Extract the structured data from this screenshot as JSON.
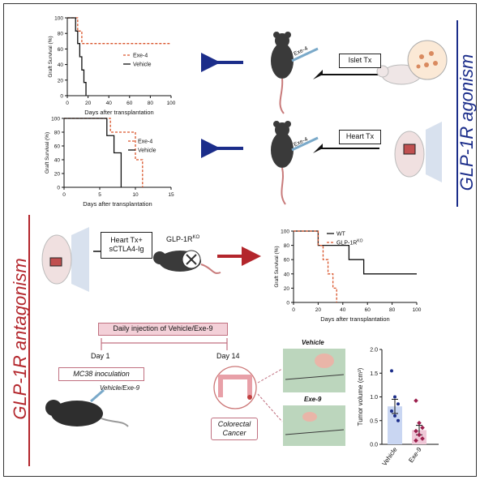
{
  "side_titles": {
    "top": "GLP-1R agonism",
    "bottom": "GLP-1R antagonism"
  },
  "colors": {
    "blue": "#1b2d8a",
    "red": "#b3262c",
    "exe4_line": "#d9542a",
    "vehicle_line": "#111111",
    "pink_bar": "#f0c8d8",
    "banner": "#f3d0d8"
  },
  "procedures": {
    "islet_tx": "Islet Tx",
    "heart_tx": "Heart Tx",
    "exe4_syringe_1": "Exe-4",
    "exe4_syringe_2": "Exe-4",
    "heart_tx_ctla4": "Heart Tx+\nsCTLA4-Ig",
    "glp1r_ko_label": "GLP-1R",
    "glp1r_ko_sup": "KO"
  },
  "experiment": {
    "banner": "Daily injection of Vehicle/Exe-9",
    "day1": "Day 1",
    "day14": "Day 14",
    "mc38": "MC38 inoculation",
    "mouse_label": "Vehicle/Exe-9",
    "colorectal": "Colorectal\nCancer",
    "photo_vehicle": "Vehicle",
    "photo_exe9": "Exe-9"
  },
  "chart_data": [
    {
      "type": "line",
      "xlabel": "Days after transplantation",
      "ylabel": "Graft Survival (%)",
      "xlim": [
        0,
        100
      ],
      "ylim": [
        0,
        100
      ],
      "xticks": [
        0,
        20,
        40,
        60,
        80,
        100
      ],
      "yticks": [
        0,
        20,
        40,
        60,
        80,
        100
      ],
      "legend": "top-center",
      "series": [
        {
          "name": "Exe-4",
          "style": "dashed",
          "x": [
            0,
            10,
            10,
            14,
            14,
            100
          ],
          "y": [
            100,
            100,
            83,
            83,
            67,
            67
          ]
        },
        {
          "name": "Vehicle",
          "style": "solid",
          "x": [
            0,
            8,
            8,
            10,
            10,
            12,
            12,
            14,
            14,
            16,
            16,
            18,
            18
          ],
          "y": [
            100,
            100,
            83,
            83,
            67,
            67,
            50,
            50,
            33,
            33,
            17,
            17,
            0
          ]
        }
      ]
    },
    {
      "type": "line",
      "xlabel": "Days after transplantation",
      "ylabel": "Graft Survival (%)",
      "xlim": [
        0,
        15
      ],
      "ylim": [
        0,
        100
      ],
      "xticks": [
        0,
        5,
        10,
        15
      ],
      "yticks": [
        0,
        20,
        40,
        60,
        80,
        100
      ],
      "legend": "right",
      "series": [
        {
          "name": "Exe-4",
          "style": "dashed",
          "x": [
            0,
            6.5,
            6.5,
            10,
            10,
            11,
            11
          ],
          "y": [
            100,
            100,
            80,
            80,
            40,
            40,
            0
          ]
        },
        {
          "name": "Vehicle",
          "style": "solid",
          "x": [
            0,
            6,
            6,
            7,
            7,
            8,
            8
          ],
          "y": [
            100,
            100,
            75,
            75,
            50,
            50,
            0
          ]
        }
      ]
    },
    {
      "type": "line",
      "xlabel": "Days after transplantation",
      "ylabel": "Graft Survival (%)",
      "xlim": [
        0,
        100
      ],
      "ylim": [
        0,
        100
      ],
      "xticks": [
        0,
        20,
        40,
        60,
        80,
        100
      ],
      "yticks": [
        0,
        20,
        40,
        60,
        80,
        100
      ],
      "legend": "top-center",
      "series": [
        {
          "name": "WT",
          "style": "solid",
          "x": [
            0,
            20,
            20,
            45,
            45,
            57,
            57,
            100
          ],
          "y": [
            100,
            100,
            80,
            80,
            60,
            60,
            40,
            40
          ]
        },
        {
          "name": "GLP-1R",
          "name_sup": "KO",
          "style": "dashed",
          "x": [
            0,
            20,
            20,
            24,
            24,
            28,
            28,
            32,
            32,
            35,
            35
          ],
          "y": [
            100,
            100,
            80,
            80,
            60,
            60,
            40,
            40,
            20,
            20,
            0
          ]
        }
      ]
    },
    {
      "type": "bar",
      "ylabel": "Tumor volume (cm³)",
      "categories": [
        "Vehicle",
        "Exe-9"
      ],
      "values": [
        0.8,
        0.3
      ],
      "errors": [
        0.15,
        0.1
      ],
      "ylim": [
        0,
        2.0
      ],
      "yticks": [
        0.0,
        0.5,
        1.0,
        1.5,
        2.0
      ],
      "points": [
        [
          1.55,
          1.0,
          0.85,
          0.7,
          0.6,
          0.5
        ],
        [
          0.92,
          0.45,
          0.35,
          0.28,
          0.2,
          0.12,
          0.08
        ]
      ]
    }
  ]
}
